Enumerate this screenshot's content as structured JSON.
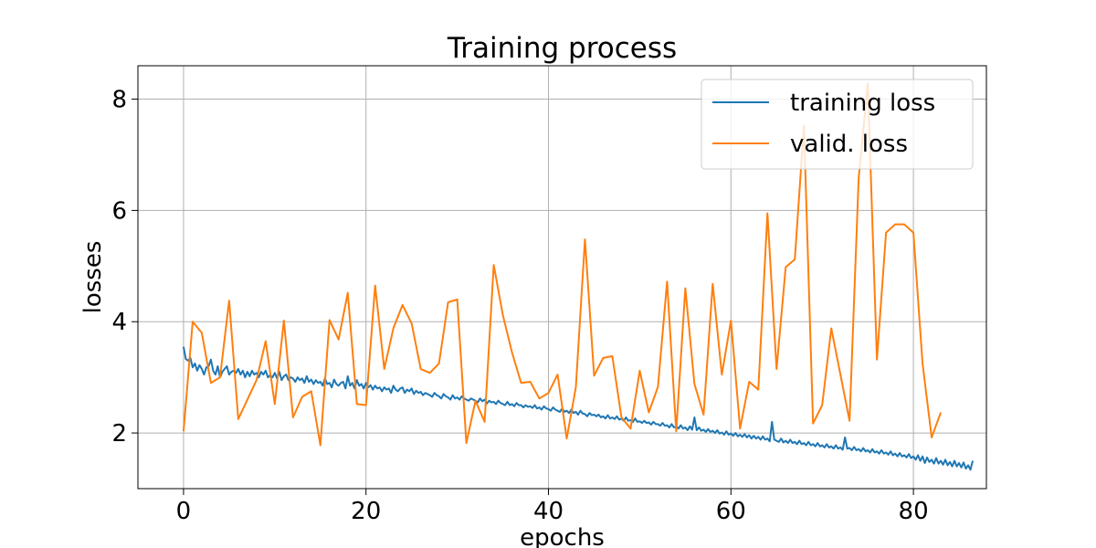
{
  "chart_data": {
    "type": "line",
    "title": "Training process",
    "xlabel": "epochs",
    "ylabel": "losses",
    "xlim": [
      -5,
      88
    ],
    "ylim": [
      1.0,
      8.6
    ],
    "xticks": [
      0,
      20,
      40,
      60,
      80
    ],
    "yticks": [
      2,
      4,
      6,
      8
    ],
    "grid": true,
    "legend_position": "top-right",
    "series": [
      {
        "name": "training loss",
        "color": "#1f77b4",
        "x_start": 0,
        "x_step": 0.25,
        "values": [
          3.55,
          3.33,
          3.3,
          3.35,
          3.18,
          3.25,
          3.12,
          3.22,
          3.15,
          3.05,
          3.18,
          3.2,
          3.32,
          3.12,
          3.05,
          3.2,
          3.0,
          3.1,
          3.15,
          3.2,
          3.05,
          3.1,
          3.12,
          3.08,
          3.15,
          3.05,
          3.12,
          3.0,
          3.1,
          3.02,
          3.12,
          3.05,
          3.08,
          3.0,
          3.1,
          3.05,
          3.12,
          3.0,
          3.04,
          3.0,
          3.08,
          2.98,
          3.1,
          2.95,
          3.02,
          3.05,
          2.95,
          3.0,
          2.98,
          2.92,
          3.0,
          2.95,
          2.98,
          2.9,
          3.02,
          2.92,
          2.96,
          2.88,
          2.95,
          2.9,
          2.92,
          2.85,
          2.98,
          2.88,
          2.9,
          2.82,
          2.96,
          2.88,
          2.85,
          2.9,
          2.92,
          2.8,
          3.02,
          2.85,
          2.9,
          2.8,
          2.95,
          2.85,
          2.88,
          2.8,
          2.9,
          2.82,
          2.86,
          2.78,
          2.85,
          2.8,
          2.82,
          2.75,
          2.82,
          2.78,
          2.8,
          2.72,
          2.85,
          2.78,
          2.75,
          2.8,
          2.82,
          2.72,
          2.78,
          2.75,
          2.8,
          2.7,
          2.76,
          2.72,
          2.74,
          2.68,
          2.72,
          2.7,
          2.68,
          2.65,
          2.72,
          2.68,
          2.66,
          2.62,
          2.7,
          2.66,
          2.64,
          2.6,
          2.68,
          2.62,
          2.64,
          2.6,
          2.66,
          2.62,
          2.6,
          2.58,
          2.62,
          2.6,
          2.58,
          2.55,
          2.62,
          2.57,
          2.6,
          2.53,
          2.58,
          2.55,
          2.56,
          2.52,
          2.58,
          2.54,
          2.52,
          2.5,
          2.56,
          2.5,
          2.52,
          2.48,
          2.54,
          2.5,
          2.5,
          2.46,
          2.5,
          2.47,
          2.48,
          2.45,
          2.5,
          2.44,
          2.46,
          2.42,
          2.48,
          2.44,
          2.43,
          2.4,
          2.46,
          2.42,
          2.4,
          2.38,
          2.44,
          2.38,
          2.4,
          2.36,
          2.42,
          2.36,
          2.38,
          2.33,
          2.4,
          2.35,
          2.34,
          2.3,
          2.36,
          2.32,
          2.33,
          2.3,
          2.33,
          2.28,
          2.3,
          2.26,
          2.32,
          2.26,
          2.28,
          2.25,
          2.3,
          2.24,
          2.26,
          2.22,
          2.28,
          2.22,
          2.23,
          2.2,
          2.26,
          2.2,
          2.21,
          2.18,
          2.22,
          2.18,
          2.19,
          2.15,
          2.2,
          2.16,
          2.16,
          2.13,
          2.18,
          2.13,
          2.14,
          2.1,
          2.16,
          2.1,
          2.12,
          2.08,
          2.14,
          2.08,
          2.1,
          2.05,
          2.12,
          2.06,
          2.28,
          2.05,
          2.1,
          2.04,
          2.06,
          2.02,
          2.07,
          2.02,
          2.04,
          2.0,
          2.05,
          1.99,
          2.01,
          1.97,
          2.03,
          1.97,
          1.99,
          1.95,
          2.0,
          1.94,
          1.97,
          1.93,
          1.98,
          1.92,
          1.96,
          1.9,
          1.95,
          1.9,
          1.93,
          1.88,
          1.94,
          1.88,
          1.9,
          1.85,
          2.2,
          1.88,
          1.86,
          1.84,
          1.9,
          1.83,
          1.86,
          1.82,
          1.88,
          1.82,
          1.84,
          1.8,
          1.86,
          1.8,
          1.82,
          1.78,
          1.84,
          1.78,
          1.8,
          1.76,
          1.82,
          1.76,
          1.78,
          1.74,
          1.8,
          1.74,
          1.76,
          1.72,
          1.78,
          1.72,
          1.74,
          1.7,
          1.92,
          1.72,
          1.73,
          1.69,
          1.75,
          1.69,
          1.71,
          1.67,
          1.73,
          1.67,
          1.69,
          1.65,
          1.71,
          1.65,
          1.67,
          1.63,
          1.69,
          1.63,
          1.65,
          1.61,
          1.67,
          1.6,
          1.63,
          1.58,
          1.64,
          1.58,
          1.6,
          1.56,
          1.62,
          1.55,
          1.58,
          1.52,
          1.6,
          1.5,
          1.58,
          1.46,
          1.56,
          1.48,
          1.52,
          1.45,
          1.55,
          1.45,
          1.5,
          1.43,
          1.52,
          1.42,
          1.48,
          1.4,
          1.5,
          1.4,
          1.46,
          1.38,
          1.47,
          1.36,
          1.42,
          1.34,
          1.5
        ]
      },
      {
        "name": "valid. loss",
        "color": "#ff7f0e",
        "x_start": 0,
        "x_step": 1,
        "values": [
          2.03,
          4.0,
          3.8,
          2.9,
          3.0,
          4.38,
          2.25,
          2.6,
          2.95,
          3.65,
          2.52,
          4.02,
          2.28,
          2.65,
          2.75,
          1.78,
          4.03,
          3.68,
          4.52,
          2.52,
          2.5,
          4.65,
          3.15,
          3.88,
          4.3,
          3.97,
          3.15,
          3.08,
          3.25,
          4.35,
          4.4,
          1.82,
          2.58,
          2.2,
          5.02,
          4.12,
          3.45,
          2.9,
          2.92,
          2.62,
          2.72,
          3.05,
          1.9,
          2.82,
          5.48,
          3.03,
          3.35,
          3.38,
          2.28,
          2.08,
          3.12,
          2.37,
          2.83,
          4.72,
          2.03,
          4.6,
          2.88,
          2.33,
          4.68,
          3.05,
          4.02,
          2.08,
          2.92,
          2.78,
          5.95,
          3.15,
          4.98,
          5.12,
          7.52,
          2.17,
          2.5,
          3.88,
          3.05,
          2.22,
          6.58,
          8.28,
          3.32,
          5.6,
          5.75,
          5.75,
          5.6,
          3.25,
          1.92,
          2.37
        ]
      }
    ]
  }
}
